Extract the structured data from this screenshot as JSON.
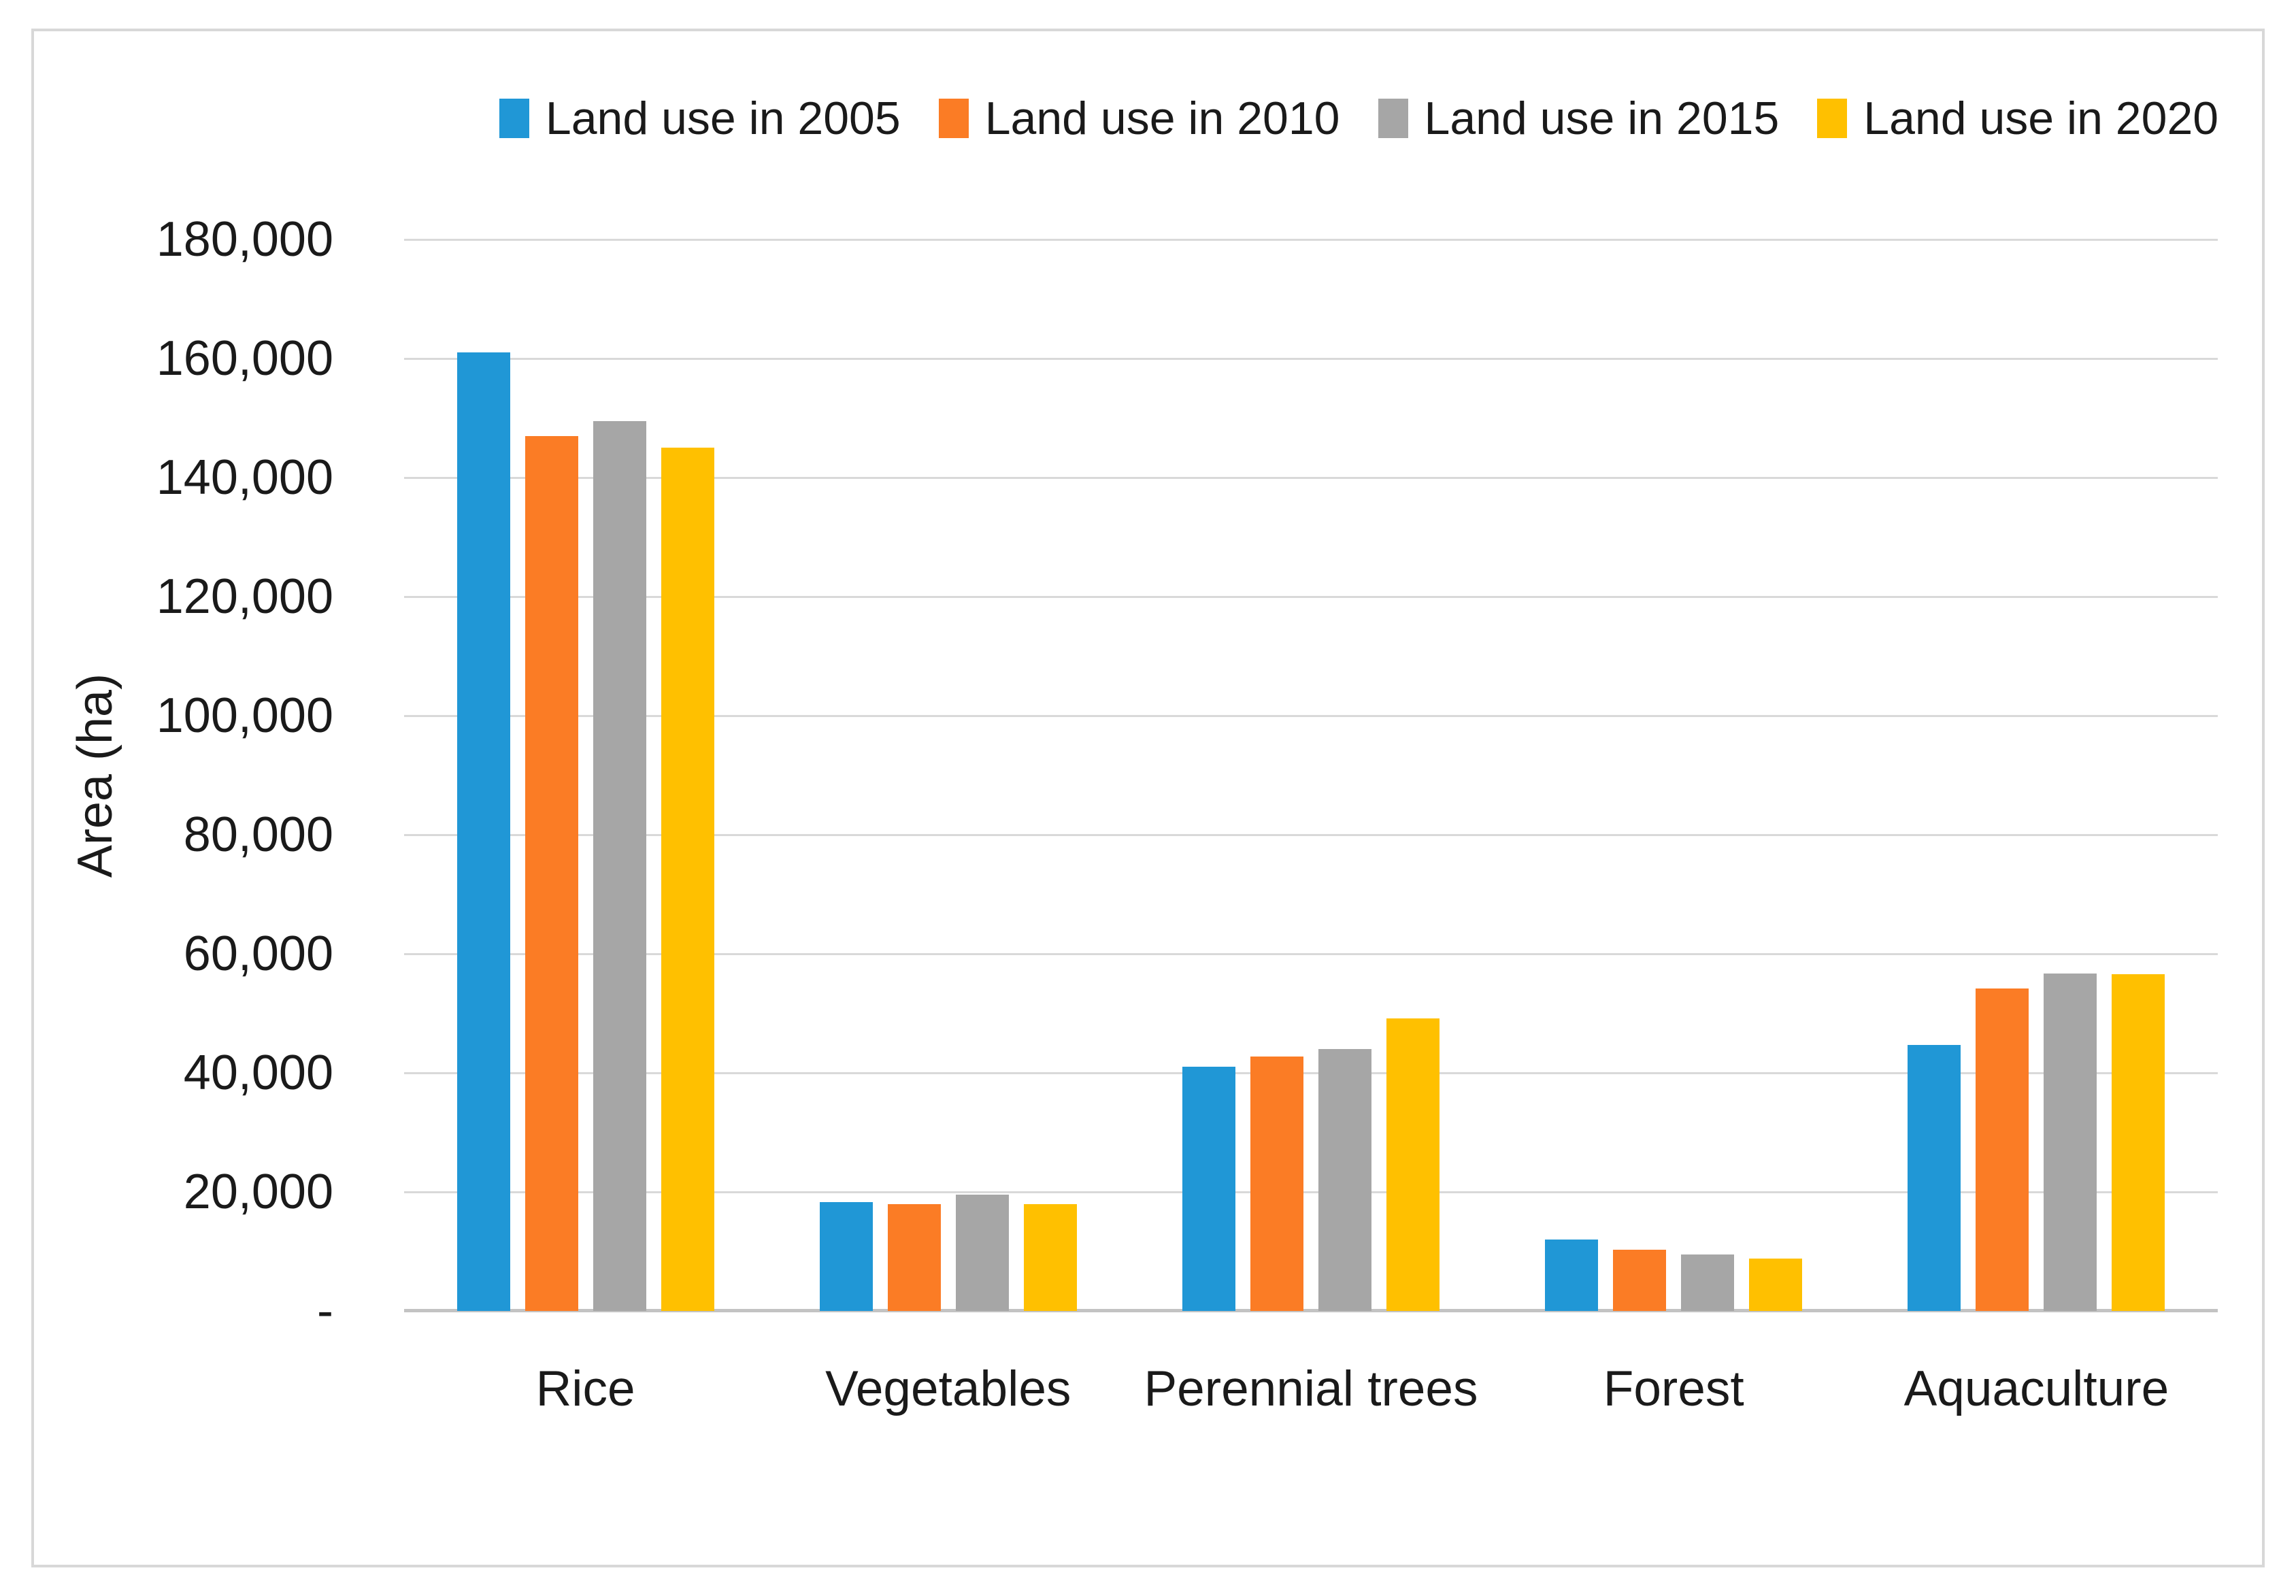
{
  "figure": {
    "background": "#ffffff",
    "border_color": "#d8d8d8"
  },
  "y_axis": {
    "title": "Area (ha)"
  },
  "chart_data": {
    "type": "bar",
    "title": "",
    "categories": [
      "Rice",
      "Vegetables",
      "Perennial trees",
      "Forest",
      "Aquaculture"
    ],
    "series": [
      {
        "name": "Land use in 2005",
        "color": "#2097d6",
        "values": [
          161000,
          18300,
          41000,
          12000,
          44700
        ]
      },
      {
        "name": "Land use in 2010",
        "color": "#fb7c25",
        "values": [
          147000,
          18000,
          42800,
          10300,
          54200
        ]
      },
      {
        "name": "Land use in 2015",
        "color": "#a6a6a6",
        "values": [
          149500,
          19600,
          44000,
          9500,
          56700
        ]
      },
      {
        "name": "Land use in 2020",
        "color": "#ffc000",
        "values": [
          145000,
          18000,
          49200,
          8800,
          56600
        ]
      }
    ],
    "xlabel": "",
    "ylabel": "Area (ha)",
    "ylim": [
      0,
      180000
    ],
    "ytick_interval": 20000,
    "ytick_labels_bottom_up": [
      "-",
      "20,000",
      "40,000",
      "60,000",
      "80,000",
      "100,000",
      "120,000",
      "140,000",
      "160,000",
      "180,000"
    ],
    "grid": true,
    "gridline_color": "#d9d9d9",
    "axis_line_color": "#c3c3c3",
    "text_color": "#1a1a1a",
    "legend_position": "top"
  }
}
